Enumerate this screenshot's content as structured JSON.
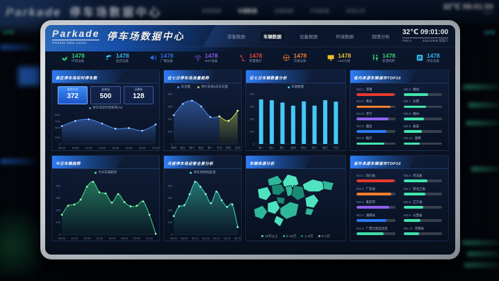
{
  "background": {
    "brand": "Parkade",
    "title": "停车场数据中心",
    "temperature": "32℃",
    "time": "09:01:00",
    "side_value_left": "1478",
    "side_value_right": "1478"
  },
  "screen": {
    "header": {
      "brand": "Parkade",
      "subtitle": "Parkade Data Center",
      "title": "停车场数据中心",
      "nav": [
        {
          "label": "游客数据",
          "active": false
        },
        {
          "label": "车辆数据",
          "active": true
        },
        {
          "label": "设备数据",
          "active": false
        },
        {
          "label": "环境数据",
          "active": false
        },
        {
          "label": "舆情分析",
          "active": false
        }
      ],
      "temperature": "32℃",
      "time": "09:01:00",
      "pm": "PM2.5",
      "date": "2021/10/06 星期三"
    },
    "stats": [
      {
        "icon": "sprout-icon",
        "value": "1478",
        "label": "环境设备",
        "color": "#38d274"
      },
      {
        "icon": "camera-icon",
        "value": "1478",
        "label": "监控设备",
        "color": "#3bb9f0"
      },
      {
        "icon": "speaker-icon",
        "value": "1478",
        "label": "广播设备",
        "color": "#2f6fe8"
      },
      {
        "icon": "wifi-icon",
        "value": "1478",
        "label": "WIFI设备",
        "color": "#8a5cf0"
      },
      {
        "icon": "lamp-icon",
        "value": "1478",
        "label": "智慧路灯",
        "color": "#e8443a"
      },
      {
        "icon": "steering-wheel-icon",
        "value": "1478",
        "label": "交通设施",
        "color": "#f08030"
      },
      {
        "icon": "led-screen-icon",
        "value": "1478",
        "label": "LED大屏",
        "color": "#efc234"
      },
      {
        "icon": "restroom-icon",
        "value": "1478",
        "label": "智慧厕所",
        "color": "#38d274"
      },
      {
        "icon": "parking-icon",
        "value": "1478",
        "label": "停车设备",
        "color": "#35b8f0"
      }
    ],
    "panels": {
      "realtime": {
        "title": "景区停车场实时停车数",
        "boxes": [
          {
            "label": "剩余车位",
            "value": "372"
          },
          {
            "label": "总车位",
            "value": "500"
          },
          {
            "label": "已停车",
            "value": "128"
          }
        ]
      },
      "weekly_flow": {
        "title": "近七日停车场流量趋势"
      },
      "weekly_count": {
        "title": "近七日车辆数量分析"
      },
      "top10_inner": {
        "title": "省内来源车辆城市TOP10",
        "items": [
          {
            "rank": "NO.1",
            "name": "济南",
            "pct": 97,
            "color": "#e8392f"
          },
          {
            "rank": "NO.2",
            "name": "青岛",
            "pct": 89,
            "color": "#f57d2c"
          },
          {
            "rank": "NO.3",
            "name": "济宁",
            "pct": 83,
            "color": "#9061f2"
          },
          {
            "rank": "NO.4",
            "name": "烟台",
            "pct": 78,
            "color": "#2b7bf5"
          },
          {
            "rank": "NO.5",
            "name": "临沂",
            "pct": 72,
            "color": "#43e5ae"
          },
          {
            "rank": "NO.6",
            "name": "潍坊",
            "pct": 64,
            "color": "#43e5ae"
          },
          {
            "rank": "NO.7",
            "name": "东营",
            "pct": 58,
            "color": "#43e5ae"
          },
          {
            "rank": "NO.8",
            "name": "德州",
            "pct": 54,
            "color": "#43e5ae"
          },
          {
            "rank": "NO.9",
            "name": "泰安",
            "pct": 48,
            "color": "#43e5ae"
          },
          {
            "rank": "NO.10",
            "name": "淄博",
            "pct": 42,
            "color": "#43e5ae"
          }
        ]
      },
      "today_trend": {
        "title": "今日车辆趋势"
      },
      "monthly": {
        "title": "月度停车场迎客全景分析"
      },
      "map": {
        "title": "车辆来源分析",
        "legend": [
          {
            "label": "10万以上",
            "color": "#4fe3bf"
          },
          {
            "label": "5~10万",
            "color": "#2fb89a"
          },
          {
            "label": "1~5万",
            "color": "#1b8a73"
          },
          {
            "label": "0~1万",
            "color": "#9fb3bd"
          }
        ]
      },
      "top10_outer": {
        "title": "省外来源车辆城市TOP10",
        "items": [
          {
            "rank": "NO.1",
            "name": "四川省",
            "pct": 97,
            "color": "#e8392f"
          },
          {
            "rank": "NO.2",
            "name": "广东省",
            "pct": 90,
            "color": "#f57d2c"
          },
          {
            "rank": "NO.3",
            "name": "重庆市",
            "pct": 84,
            "color": "#9061f2"
          },
          {
            "rank": "NO.4",
            "name": "湖南省",
            "pct": 77,
            "color": "#2b7bf5"
          },
          {
            "rank": "NO.5",
            "name": "广西壮族自治区",
            "pct": 70,
            "color": "#43e5ae"
          },
          {
            "rank": "NO.6",
            "name": "河北省",
            "pct": 63,
            "color": "#43e5ae"
          },
          {
            "rank": "NO.7",
            "name": "黑龙江省",
            "pct": 57,
            "color": "#43e5ae"
          },
          {
            "rank": "NO.8",
            "name": "辽宁省",
            "pct": 51,
            "color": "#43e5ae"
          },
          {
            "rank": "NO.9",
            "name": "山西省",
            "pct": 45,
            "color": "#43e5ae"
          },
          {
            "rank": "NO.10",
            "name": "河南省",
            "pct": 40,
            "color": "#43e5ae"
          }
        ]
      }
    }
  },
  "chart_data": [
    {
      "id": "saturation",
      "type": "line",
      "title": "景区停车场实时停车数",
      "legend": [
        "停车场实时饱和率(%)"
      ],
      "x": [
        "08:00",
        "10:00",
        "12:00",
        "14:00",
        "16:00",
        "18:00",
        "20:00",
        "22:00"
      ],
      "values": [
        55,
        71,
        76,
        63,
        47,
        49,
        41,
        60
      ],
      "label_every": 1,
      "color": "#4f8df7",
      "ylim": [
        0,
        90
      ],
      "yticks": [
        {
          "v": 90,
          "t": "90%"
        },
        {
          "v": 70,
          "t": "70%"
        },
        {
          "v": 50,
          "t": "50%"
        },
        {
          "v": 20,
          "t": "20%"
        },
        {
          "v": 0,
          "t": "0"
        }
      ]
    },
    {
      "id": "weekly-flow",
      "type": "line",
      "title": "近七日停车场流量趋势",
      "legend": [
        "车流量",
        "预计未来3天车流量"
      ],
      "x": [
        "周四",
        "周五",
        "周六",
        "周日",
        "周一",
        "今天",
        "明天",
        "后天"
      ],
      "values": [
        230,
        320,
        345,
        300,
        215,
        220,
        185,
        265
      ],
      "label_every": 1,
      "split_index": 5,
      "colors": [
        "#4f8df7",
        "#c6d94e"
      ],
      "ylim": [
        0,
        400
      ],
      "yticks": [
        {
          "v": 400,
          "t": "400"
        },
        {
          "v": 300,
          "t": "300"
        },
        {
          "v": 200,
          "t": "200"
        },
        {
          "v": 100,
          "t": "100"
        },
        {
          "v": 0,
          "t": "0"
        }
      ]
    },
    {
      "id": "weekly-count",
      "type": "bar",
      "title": "近七日车辆数量分析",
      "legend": [
        "车辆数量"
      ],
      "x": [
        "周一",
        "周二",
        "周三",
        "周四",
        "周五",
        "周六",
        "周日",
        "今天"
      ],
      "values": [
        356,
        350,
        331,
        306,
        340,
        306,
        350,
        338
      ],
      "label_every": 1,
      "color": "#45c9f5",
      "ylim": [
        0,
        400
      ],
      "yticks": [
        {
          "v": 400,
          "t": "400"
        },
        {
          "v": 300,
          "t": "300"
        },
        {
          "v": 200,
          "t": "200"
        },
        {
          "v": 100,
          "t": "100"
        },
        {
          "v": 0,
          "t": "0"
        }
      ]
    },
    {
      "id": "today-trend",
      "type": "line",
      "title": "今日车辆趋势",
      "legend": [
        "今日车辆趋势"
      ],
      "x": [
        "08:00",
        "10:00",
        "12:00",
        "14:00",
        "16:00",
        "18:00",
        "20:00",
        "22:00"
      ],
      "values": [
        160,
        235,
        245,
        285,
        390,
        430,
        345,
        335,
        260,
        330,
        265,
        230,
        235,
        270,
        160,
        5
      ],
      "label_every": 2,
      "color": "#3ddc84",
      "ylim": [
        0,
        450
      ],
      "yticks": [
        {
          "v": 400,
          "t": "400"
        },
        {
          "v": 300,
          "t": "300"
        },
        {
          "v": 200,
          "t": "200"
        },
        {
          "v": 100,
          "t": "100"
        },
        {
          "v": 0,
          "t": "0"
        }
      ]
    },
    {
      "id": "monthly",
      "type": "line",
      "title": "月度停车场迎客全景分析",
      "legend": [
        "停车场饱和监测"
      ],
      "x": [
        "08-01",
        "08-06",
        "08-11",
        "08-16",
        "08-21",
        "08-26",
        "08-31"
      ],
      "values": [
        150,
        230,
        240,
        330,
        430,
        390,
        330,
        255,
        350,
        280,
        225,
        245,
        60
      ],
      "label_every": 2,
      "color": "#3fe0c0",
      "ylim": [
        0,
        450
      ],
      "yticks": [
        {
          "v": 400,
          "t": "400"
        },
        {
          "v": 300,
          "t": "300"
        },
        {
          "v": 200,
          "t": "200"
        },
        {
          "v": 100,
          "t": "100"
        },
        {
          "v": 0,
          "t": "0"
        }
      ]
    }
  ]
}
